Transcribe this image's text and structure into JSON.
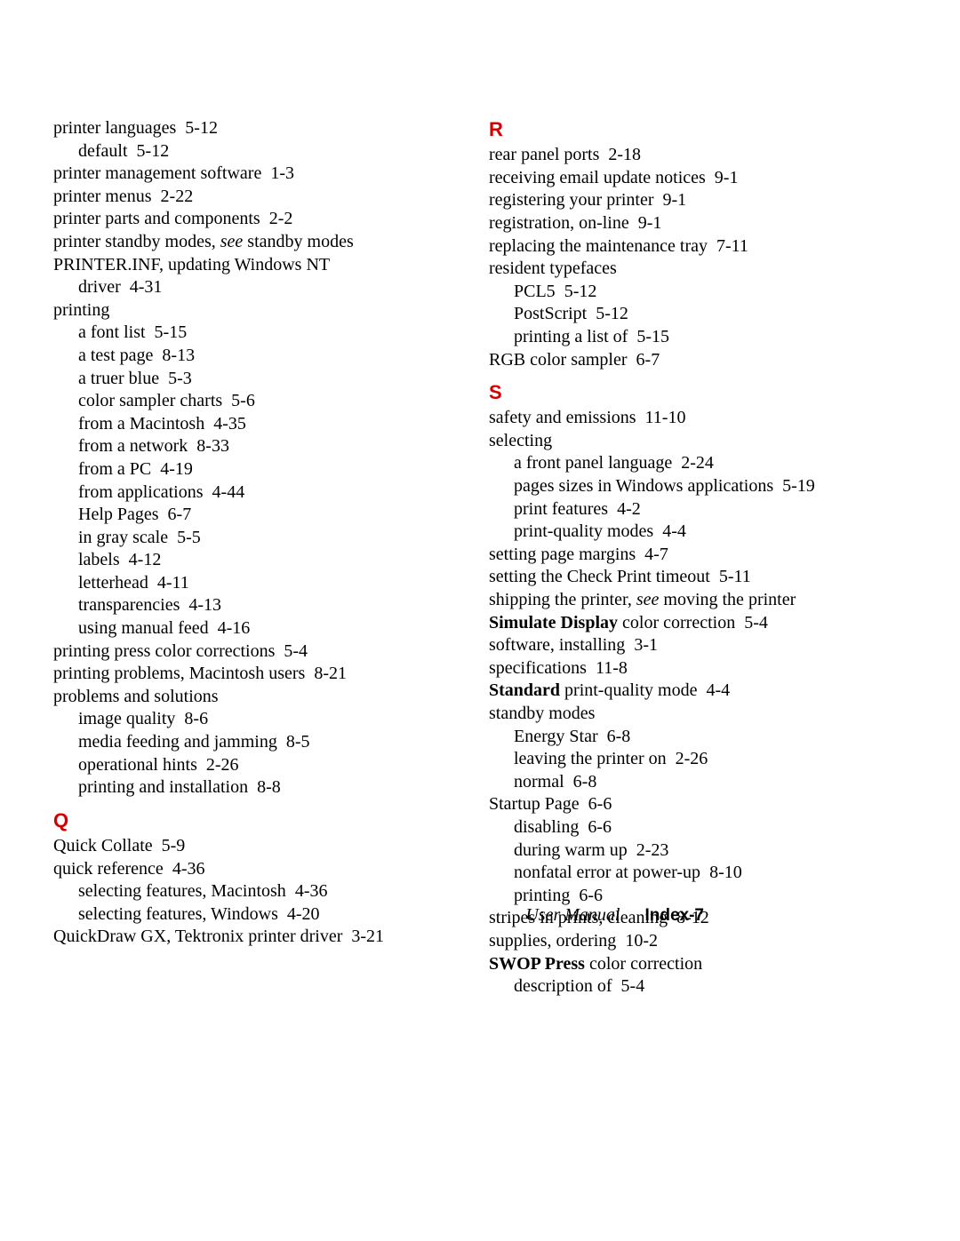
{
  "colors": {
    "heading": "#d40000",
    "text": "#000000",
    "background": "#ffffff"
  },
  "typography": {
    "body_family": "Palatino / serif",
    "heading_family": "Arial Black / heavy sans",
    "body_size_pt": 15,
    "heading_size_pt": 16,
    "line_height": 1.28
  },
  "left_column": {
    "entries": [
      {
        "level": 0,
        "parts": [
          {
            "t": "printer languages",
            "b": false,
            "i": false
          }
        ],
        "page": "5-12"
      },
      {
        "level": 1,
        "parts": [
          {
            "t": "default",
            "b": false,
            "i": false
          }
        ],
        "page": "5-12"
      },
      {
        "level": 0,
        "parts": [
          {
            "t": "printer management software",
            "b": false,
            "i": false
          }
        ],
        "page": "1-3"
      },
      {
        "level": 0,
        "parts": [
          {
            "t": "printer menus",
            "b": false,
            "i": false
          }
        ],
        "page": "2-22"
      },
      {
        "level": 0,
        "parts": [
          {
            "t": "printer parts and components",
            "b": false,
            "i": false
          }
        ],
        "page": "2-2"
      },
      {
        "level": 0,
        "parts": [
          {
            "t": "printer standby modes, ",
            "b": false,
            "i": false
          },
          {
            "t": "see",
            "b": false,
            "i": true
          },
          {
            "t": " standby modes",
            "b": false,
            "i": false
          }
        ],
        "page": ""
      },
      {
        "level": 0,
        "parts": [
          {
            "t": "PRINTER.INF, updating Windows NT",
            "b": false,
            "i": false
          }
        ],
        "page": ""
      },
      {
        "level": 1,
        "parts": [
          {
            "t": "driver",
            "b": false,
            "i": false
          }
        ],
        "page": "4-31"
      },
      {
        "level": 0,
        "parts": [
          {
            "t": "printing",
            "b": false,
            "i": false
          }
        ],
        "page": ""
      },
      {
        "level": 1,
        "parts": [
          {
            "t": "a font list",
            "b": false,
            "i": false
          }
        ],
        "page": "5-15"
      },
      {
        "level": 1,
        "parts": [
          {
            "t": "a test page",
            "b": false,
            "i": false
          }
        ],
        "page": "8-13"
      },
      {
        "level": 1,
        "parts": [
          {
            "t": "a truer blue",
            "b": false,
            "i": false
          }
        ],
        "page": "5-3"
      },
      {
        "level": 1,
        "parts": [
          {
            "t": "color sampler charts",
            "b": false,
            "i": false
          }
        ],
        "page": "5-6"
      },
      {
        "level": 1,
        "parts": [
          {
            "t": "from a Macintosh",
            "b": false,
            "i": false
          }
        ],
        "page": "4-35"
      },
      {
        "level": 1,
        "parts": [
          {
            "t": "from a network",
            "b": false,
            "i": false
          }
        ],
        "page": "8-33"
      },
      {
        "level": 1,
        "parts": [
          {
            "t": "from a PC",
            "b": false,
            "i": false
          }
        ],
        "page": "4-19"
      },
      {
        "level": 1,
        "parts": [
          {
            "t": "from applications",
            "b": false,
            "i": false
          }
        ],
        "page": "4-44"
      },
      {
        "level": 1,
        "parts": [
          {
            "t": "Help Pages",
            "b": false,
            "i": false
          }
        ],
        "page": "6-7"
      },
      {
        "level": 1,
        "parts": [
          {
            "t": "in gray scale",
            "b": false,
            "i": false
          }
        ],
        "page": "5-5"
      },
      {
        "level": 1,
        "parts": [
          {
            "t": "labels",
            "b": false,
            "i": false
          }
        ],
        "page": "4-12"
      },
      {
        "level": 1,
        "parts": [
          {
            "t": "letterhead",
            "b": false,
            "i": false
          }
        ],
        "page": "4-11"
      },
      {
        "level": 1,
        "parts": [
          {
            "t": "transparencies",
            "b": false,
            "i": false
          }
        ],
        "page": "4-13"
      },
      {
        "level": 1,
        "parts": [
          {
            "t": "using manual feed",
            "b": false,
            "i": false
          }
        ],
        "page": "4-16"
      },
      {
        "level": 0,
        "parts": [
          {
            "t": "printing press color corrections",
            "b": false,
            "i": false
          }
        ],
        "page": "5-4"
      },
      {
        "level": 0,
        "parts": [
          {
            "t": "printing problems, Macintosh users",
            "b": false,
            "i": false
          }
        ],
        "page": "8-21"
      },
      {
        "level": 0,
        "parts": [
          {
            "t": "problems and solutions",
            "b": false,
            "i": false
          }
        ],
        "page": ""
      },
      {
        "level": 1,
        "parts": [
          {
            "t": "image quality",
            "b": false,
            "i": false
          }
        ],
        "page": "8-6"
      },
      {
        "level": 1,
        "parts": [
          {
            "t": "media feeding and jamming",
            "b": false,
            "i": false
          }
        ],
        "page": "8-5"
      },
      {
        "level": 1,
        "parts": [
          {
            "t": "operational hints",
            "b": false,
            "i": false
          }
        ],
        "page": "2-26"
      },
      {
        "level": 1,
        "parts": [
          {
            "t": "printing and installation",
            "b": false,
            "i": false
          }
        ],
        "page": "8-8"
      }
    ],
    "Q": {
      "heading": "Q",
      "entries": [
        {
          "level": 0,
          "parts": [
            {
              "t": "Quick Collate",
              "b": false,
              "i": false
            }
          ],
          "page": "5-9"
        },
        {
          "level": 0,
          "parts": [
            {
              "t": "quick reference",
              "b": false,
              "i": false
            }
          ],
          "page": "4-36"
        },
        {
          "level": 1,
          "parts": [
            {
              "t": "selecting features, Macintosh",
              "b": false,
              "i": false
            }
          ],
          "page": "4-36"
        },
        {
          "level": 1,
          "parts": [
            {
              "t": "selecting features, Windows",
              "b": false,
              "i": false
            }
          ],
          "page": "4-20"
        },
        {
          "level": 0,
          "parts": [
            {
              "t": "QuickDraw GX, Tektronix printer driver",
              "b": false,
              "i": false
            }
          ],
          "page": "3-21"
        }
      ]
    }
  },
  "right_column": {
    "R": {
      "heading": "R",
      "entries": [
        {
          "level": 0,
          "parts": [
            {
              "t": "rear panel ports",
              "b": false,
              "i": false
            }
          ],
          "page": "2-18"
        },
        {
          "level": 0,
          "parts": [
            {
              "t": "receiving email update notices",
              "b": false,
              "i": false
            }
          ],
          "page": "9-1"
        },
        {
          "level": 0,
          "parts": [
            {
              "t": "registering your printer",
              "b": false,
              "i": false
            }
          ],
          "page": "9-1"
        },
        {
          "level": 0,
          "parts": [
            {
              "t": "registration, on-line",
              "b": false,
              "i": false
            }
          ],
          "page": "9-1"
        },
        {
          "level": 0,
          "parts": [
            {
              "t": "replacing the maintenance tray",
              "b": false,
              "i": false
            }
          ],
          "page": "7-11"
        },
        {
          "level": 0,
          "parts": [
            {
              "t": "resident typefaces",
              "b": false,
              "i": false
            }
          ],
          "page": ""
        },
        {
          "level": 1,
          "parts": [
            {
              "t": "PCL5",
              "b": false,
              "i": false
            }
          ],
          "page": "5-12"
        },
        {
          "level": 1,
          "parts": [
            {
              "t": "PostScript",
              "b": false,
              "i": false
            }
          ],
          "page": "5-12"
        },
        {
          "level": 1,
          "parts": [
            {
              "t": "printing a list of",
              "b": false,
              "i": false
            }
          ],
          "page": "5-15"
        },
        {
          "level": 0,
          "parts": [
            {
              "t": "RGB color sampler",
              "b": false,
              "i": false
            }
          ],
          "page": "6-7"
        }
      ]
    },
    "S": {
      "heading": "S",
      "entries": [
        {
          "level": 0,
          "parts": [
            {
              "t": "safety and emissions",
              "b": false,
              "i": false
            }
          ],
          "page": "11-10"
        },
        {
          "level": 0,
          "parts": [
            {
              "t": "selecting",
              "b": false,
              "i": false
            }
          ],
          "page": ""
        },
        {
          "level": 1,
          "parts": [
            {
              "t": "a front panel language",
              "b": false,
              "i": false
            }
          ],
          "page": "2-24"
        },
        {
          "level": 1,
          "parts": [
            {
              "t": "pages sizes in Windows applications",
              "b": false,
              "i": false
            }
          ],
          "page": "5-19"
        },
        {
          "level": 1,
          "parts": [
            {
              "t": "print features",
              "b": false,
              "i": false
            }
          ],
          "page": "4-2"
        },
        {
          "level": 1,
          "parts": [
            {
              "t": "print-quality modes",
              "b": false,
              "i": false
            }
          ],
          "page": "4-4"
        },
        {
          "level": 0,
          "parts": [
            {
              "t": "setting page margins",
              "b": false,
              "i": false
            }
          ],
          "page": "4-7"
        },
        {
          "level": 0,
          "parts": [
            {
              "t": "setting the Check Print timeout",
              "b": false,
              "i": false
            }
          ],
          "page": "5-11"
        },
        {
          "level": 0,
          "parts": [
            {
              "t": "shipping the printer, ",
              "b": false,
              "i": false
            },
            {
              "t": "see",
              "b": false,
              "i": true
            },
            {
              "t": " moving the printer",
              "b": false,
              "i": false
            }
          ],
          "page": ""
        },
        {
          "level": 0,
          "parts": [
            {
              "t": "Simulate Display",
              "b": true,
              "i": false
            },
            {
              "t": " color correction",
              "b": false,
              "i": false
            }
          ],
          "page": "5-4"
        },
        {
          "level": 0,
          "parts": [
            {
              "t": "software, installing",
              "b": false,
              "i": false
            }
          ],
          "page": "3-1"
        },
        {
          "level": 0,
          "parts": [
            {
              "t": "specifications",
              "b": false,
              "i": false
            }
          ],
          "page": "11-8"
        },
        {
          "level": 0,
          "parts": [
            {
              "t": "Standard",
              "b": true,
              "i": false
            },
            {
              "t": " print-quality mode",
              "b": false,
              "i": false
            }
          ],
          "page": "4-4"
        },
        {
          "level": 0,
          "parts": [
            {
              "t": "standby modes",
              "b": false,
              "i": false
            }
          ],
          "page": ""
        },
        {
          "level": 1,
          "parts": [
            {
              "t": "Energy Star",
              "b": false,
              "i": false
            }
          ],
          "page": "6-8"
        },
        {
          "level": 1,
          "parts": [
            {
              "t": "leaving the printer on",
              "b": false,
              "i": false
            }
          ],
          "page": "2-26"
        },
        {
          "level": 1,
          "parts": [
            {
              "t": "normal",
              "b": false,
              "i": false
            }
          ],
          "page": "6-8"
        },
        {
          "level": 0,
          "parts": [
            {
              "t": "Startup Page",
              "b": false,
              "i": false
            }
          ],
          "page": "6-6"
        },
        {
          "level": 1,
          "parts": [
            {
              "t": "disabling",
              "b": false,
              "i": false
            }
          ],
          "page": "6-6"
        },
        {
          "level": 1,
          "parts": [
            {
              "t": "during warm up",
              "b": false,
              "i": false
            }
          ],
          "page": "2-23"
        },
        {
          "level": 1,
          "parts": [
            {
              "t": "nonfatal error at power-up",
              "b": false,
              "i": false
            }
          ],
          "page": "8-10"
        },
        {
          "level": 1,
          "parts": [
            {
              "t": "printing",
              "b": false,
              "i": false
            }
          ],
          "page": "6-6"
        },
        {
          "level": 0,
          "parts": [
            {
              "t": "stripes in prints, cleaning",
              "b": false,
              "i": false
            }
          ],
          "page": "8-12"
        },
        {
          "level": 0,
          "parts": [
            {
              "t": "supplies, ordering",
              "b": false,
              "i": false
            }
          ],
          "page": "10-2"
        },
        {
          "level": 0,
          "parts": [
            {
              "t": "SWOP Press",
              "b": true,
              "i": false
            },
            {
              "t": " color correction",
              "b": false,
              "i": false
            }
          ],
          "page": ""
        },
        {
          "level": 1,
          "parts": [
            {
              "t": "description of",
              "b": false,
              "i": false
            }
          ],
          "page": "5-4"
        }
      ]
    }
  },
  "footer": {
    "doc_title": "User Manual",
    "page_label": "Index-7"
  }
}
